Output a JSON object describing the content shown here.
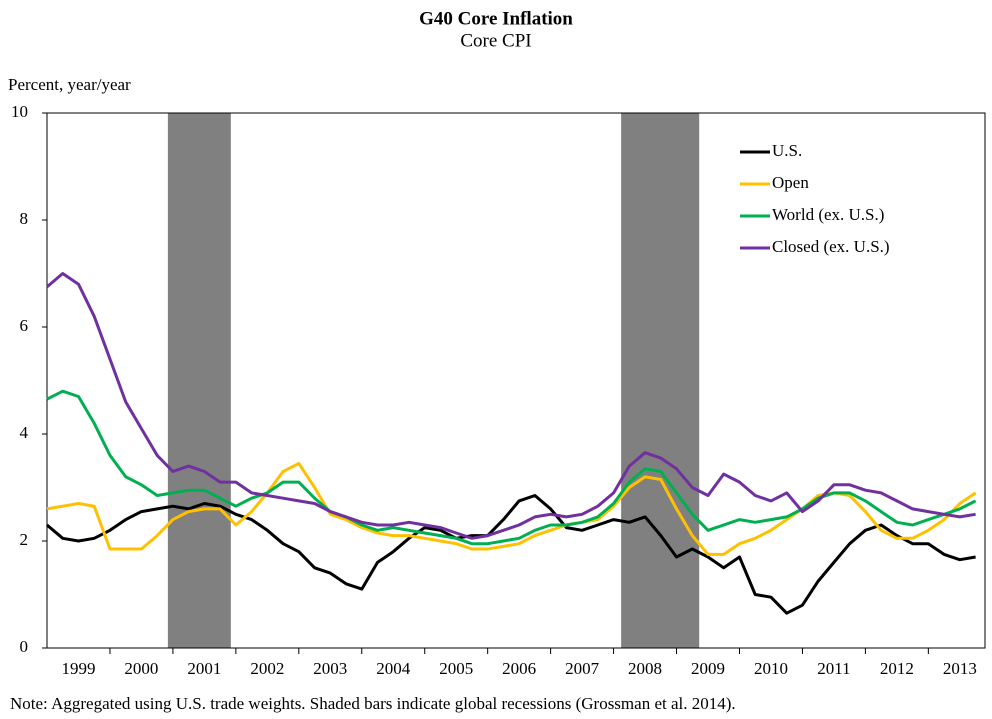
{
  "chart_data": {
    "type": "line",
    "title": "G40 Core Inflation",
    "subtitle": "Core CPI",
    "y_label": "Percent, year/year",
    "note": "Note: Aggregated using U.S. trade weights. Shaded bars indicate global recessions (Grossman et al. 2014).",
    "xlim": [
      1999,
      2013.9
    ],
    "ylim": [
      0,
      10
    ],
    "yticks": [
      0,
      2,
      4,
      6,
      8,
      10
    ],
    "xticks": [
      {
        "value": 1999.5,
        "label": "1999"
      },
      {
        "value": 2000.5,
        "label": "2000"
      },
      {
        "value": 2001.5,
        "label": "2001"
      },
      {
        "value": 2002.5,
        "label": "2002"
      },
      {
        "value": 2003.5,
        "label": "2003"
      },
      {
        "value": 2004.5,
        "label": "2004"
      },
      {
        "value": 2005.5,
        "label": "2005"
      },
      {
        "value": 2006.5,
        "label": "2006"
      },
      {
        "value": 2007.5,
        "label": "2007"
      },
      {
        "value": 2008.5,
        "label": "2008"
      },
      {
        "value": 2009.5,
        "label": "2009"
      },
      {
        "value": 2010.5,
        "label": "2010"
      },
      {
        "value": 2011.5,
        "label": "2011"
      },
      {
        "value": 2012.5,
        "label": "2012"
      },
      {
        "value": 2013.5,
        "label": "2013"
      }
    ],
    "recessions": [
      [
        2000.92,
        2001.92
      ],
      [
        2008.12,
        2009.36
      ]
    ],
    "recession_color": "#808080",
    "legend": "upper right",
    "x": [
      1999,
      1999.25,
      1999.5,
      1999.75,
      2000,
      2000.25,
      2000.5,
      2000.75,
      2001,
      2001.25,
      2001.5,
      2001.75,
      2002,
      2002.25,
      2002.5,
      2002.75,
      2003,
      2003.25,
      2003.5,
      2003.75,
      2004,
      2004.25,
      2004.5,
      2004.75,
      2005,
      2005.25,
      2005.5,
      2005.75,
      2006,
      2006.25,
      2006.5,
      2006.75,
      2007,
      2007.25,
      2007.5,
      2007.75,
      2008,
      2008.25,
      2008.5,
      2008.75,
      2009,
      2009.25,
      2009.5,
      2009.75,
      2010,
      2010.25,
      2010.5,
      2010.75,
      2011,
      2011.25,
      2011.5,
      2011.75,
      2012,
      2012.25,
      2012.5,
      2012.75,
      2013,
      2013.25,
      2013.5,
      2013.75
    ],
    "series": [
      {
        "name": "U.S.",
        "color": "#000000",
        "values": [
          2.3,
          2.05,
          2.0,
          2.05,
          2.2,
          2.4,
          2.55,
          2.6,
          2.65,
          2.6,
          2.7,
          2.65,
          2.5,
          2.4,
          2.2,
          1.95,
          1.8,
          1.5,
          1.4,
          1.2,
          1.1,
          1.6,
          1.8,
          2.05,
          2.25,
          2.2,
          2.05,
          2.1,
          2.1,
          2.4,
          2.75,
          2.85,
          2.6,
          2.25,
          2.2,
          2.3,
          2.4,
          2.35,
          2.45,
          2.1,
          1.7,
          1.85,
          1.7,
          1.5,
          1.7,
          1.0,
          0.95,
          0.65,
          0.8,
          1.25,
          1.6,
          1.95,
          2.2,
          2.3,
          2.1,
          1.95,
          1.95,
          1.75,
          1.65,
          1.7
        ]
      },
      {
        "name": "Open",
        "color": "#ffc000",
        "values": [
          2.6,
          2.65,
          2.7,
          2.65,
          1.85,
          1.85,
          1.85,
          2.1,
          2.4,
          2.55,
          2.6,
          2.6,
          2.3,
          2.55,
          2.9,
          3.3,
          3.45,
          3.0,
          2.5,
          2.4,
          2.25,
          2.15,
          2.1,
          2.1,
          2.05,
          2.0,
          1.95,
          1.85,
          1.85,
          1.9,
          1.95,
          2.1,
          2.2,
          2.3,
          2.35,
          2.4,
          2.65,
          3.0,
          3.2,
          3.15,
          2.6,
          2.1,
          1.75,
          1.75,
          1.95,
          2.05,
          2.2,
          2.4,
          2.6,
          2.85,
          2.9,
          2.85,
          2.55,
          2.2,
          2.05,
          2.05,
          2.2,
          2.4,
          2.7,
          2.9
        ]
      },
      {
        "name": "World (ex. U.S.)",
        "color": "#00b050",
        "values": [
          4.65,
          4.8,
          4.7,
          4.2,
          3.6,
          3.2,
          3.05,
          2.85,
          2.9,
          2.95,
          2.95,
          2.8,
          2.65,
          2.8,
          2.9,
          3.1,
          3.1,
          2.8,
          2.55,
          2.45,
          2.3,
          2.2,
          2.25,
          2.2,
          2.15,
          2.1,
          2.05,
          1.95,
          1.95,
          2.0,
          2.05,
          2.2,
          2.3,
          2.3,
          2.35,
          2.45,
          2.7,
          3.1,
          3.35,
          3.3,
          2.9,
          2.5,
          2.2,
          2.3,
          2.4,
          2.35,
          2.4,
          2.45,
          2.6,
          2.8,
          2.9,
          2.9,
          2.75,
          2.55,
          2.35,
          2.3,
          2.4,
          2.5,
          2.6,
          2.75
        ]
      },
      {
        "name": "Closed (ex. U.S.)",
        "color": "#7030a0",
        "values": [
          6.75,
          7.0,
          6.8,
          6.2,
          5.4,
          4.6,
          4.1,
          3.6,
          3.3,
          3.4,
          3.3,
          3.1,
          3.1,
          2.9,
          2.85,
          2.8,
          2.75,
          2.7,
          2.55,
          2.45,
          2.35,
          2.3,
          2.3,
          2.35,
          2.3,
          2.25,
          2.15,
          2.05,
          2.1,
          2.2,
          2.3,
          2.45,
          2.5,
          2.45,
          2.5,
          2.65,
          2.9,
          3.4,
          3.65,
          3.55,
          3.35,
          3.0,
          2.85,
          3.25,
          3.1,
          2.85,
          2.75,
          2.9,
          2.55,
          2.75,
          3.05,
          3.05,
          2.95,
          2.9,
          2.75,
          2.6,
          2.55,
          2.5,
          2.45,
          2.5
        ]
      }
    ]
  }
}
